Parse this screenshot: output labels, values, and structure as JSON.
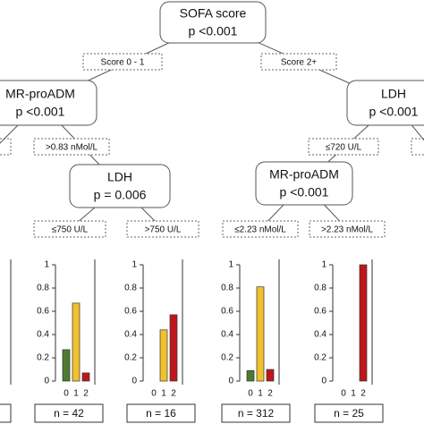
{
  "nodes": [
    {
      "label": "SOFA score",
      "p": "p <0.001"
    },
    {
      "label": "MR-proADM",
      "p": "p <0.001"
    },
    {
      "label": "LDH",
      "p": "p <0.001"
    },
    {
      "label": "LDH",
      "p": "p = 0.006"
    },
    {
      "label": "MR-proADM",
      "p": "p <0.001"
    }
  ],
  "edges": [
    "Score 0 - 1",
    "Score 2+",
    ">0.83 nMol/L",
    "≤720 U/L",
    "≤750 U/L",
    ">750 U/L",
    "≤2.23 nMol/L",
    ">2.23 nMol/L"
  ],
  "leaf_charts": {
    "ylim": [
      0,
      1
    ],
    "yticks": [
      0,
      0.2,
      0.4,
      0.6,
      0.8,
      1
    ],
    "categories": [
      "0",
      "1",
      "2"
    ],
    "colors": [
      "#4e7a2e",
      "#f2c12e",
      "#c0161b"
    ],
    "leaves": [
      {
        "n": "n = 42",
        "values": [
          0.27,
          0.67,
          0.07
        ]
      },
      {
        "n": "n = 16",
        "values": [
          0,
          0.44,
          0.57
        ]
      },
      {
        "n": "n = 312",
        "values": [
          0.09,
          0.81,
          0.1
        ]
      },
      {
        "n": "n = 25",
        "values": [
          0,
          0,
          1
        ]
      }
    ]
  }
}
